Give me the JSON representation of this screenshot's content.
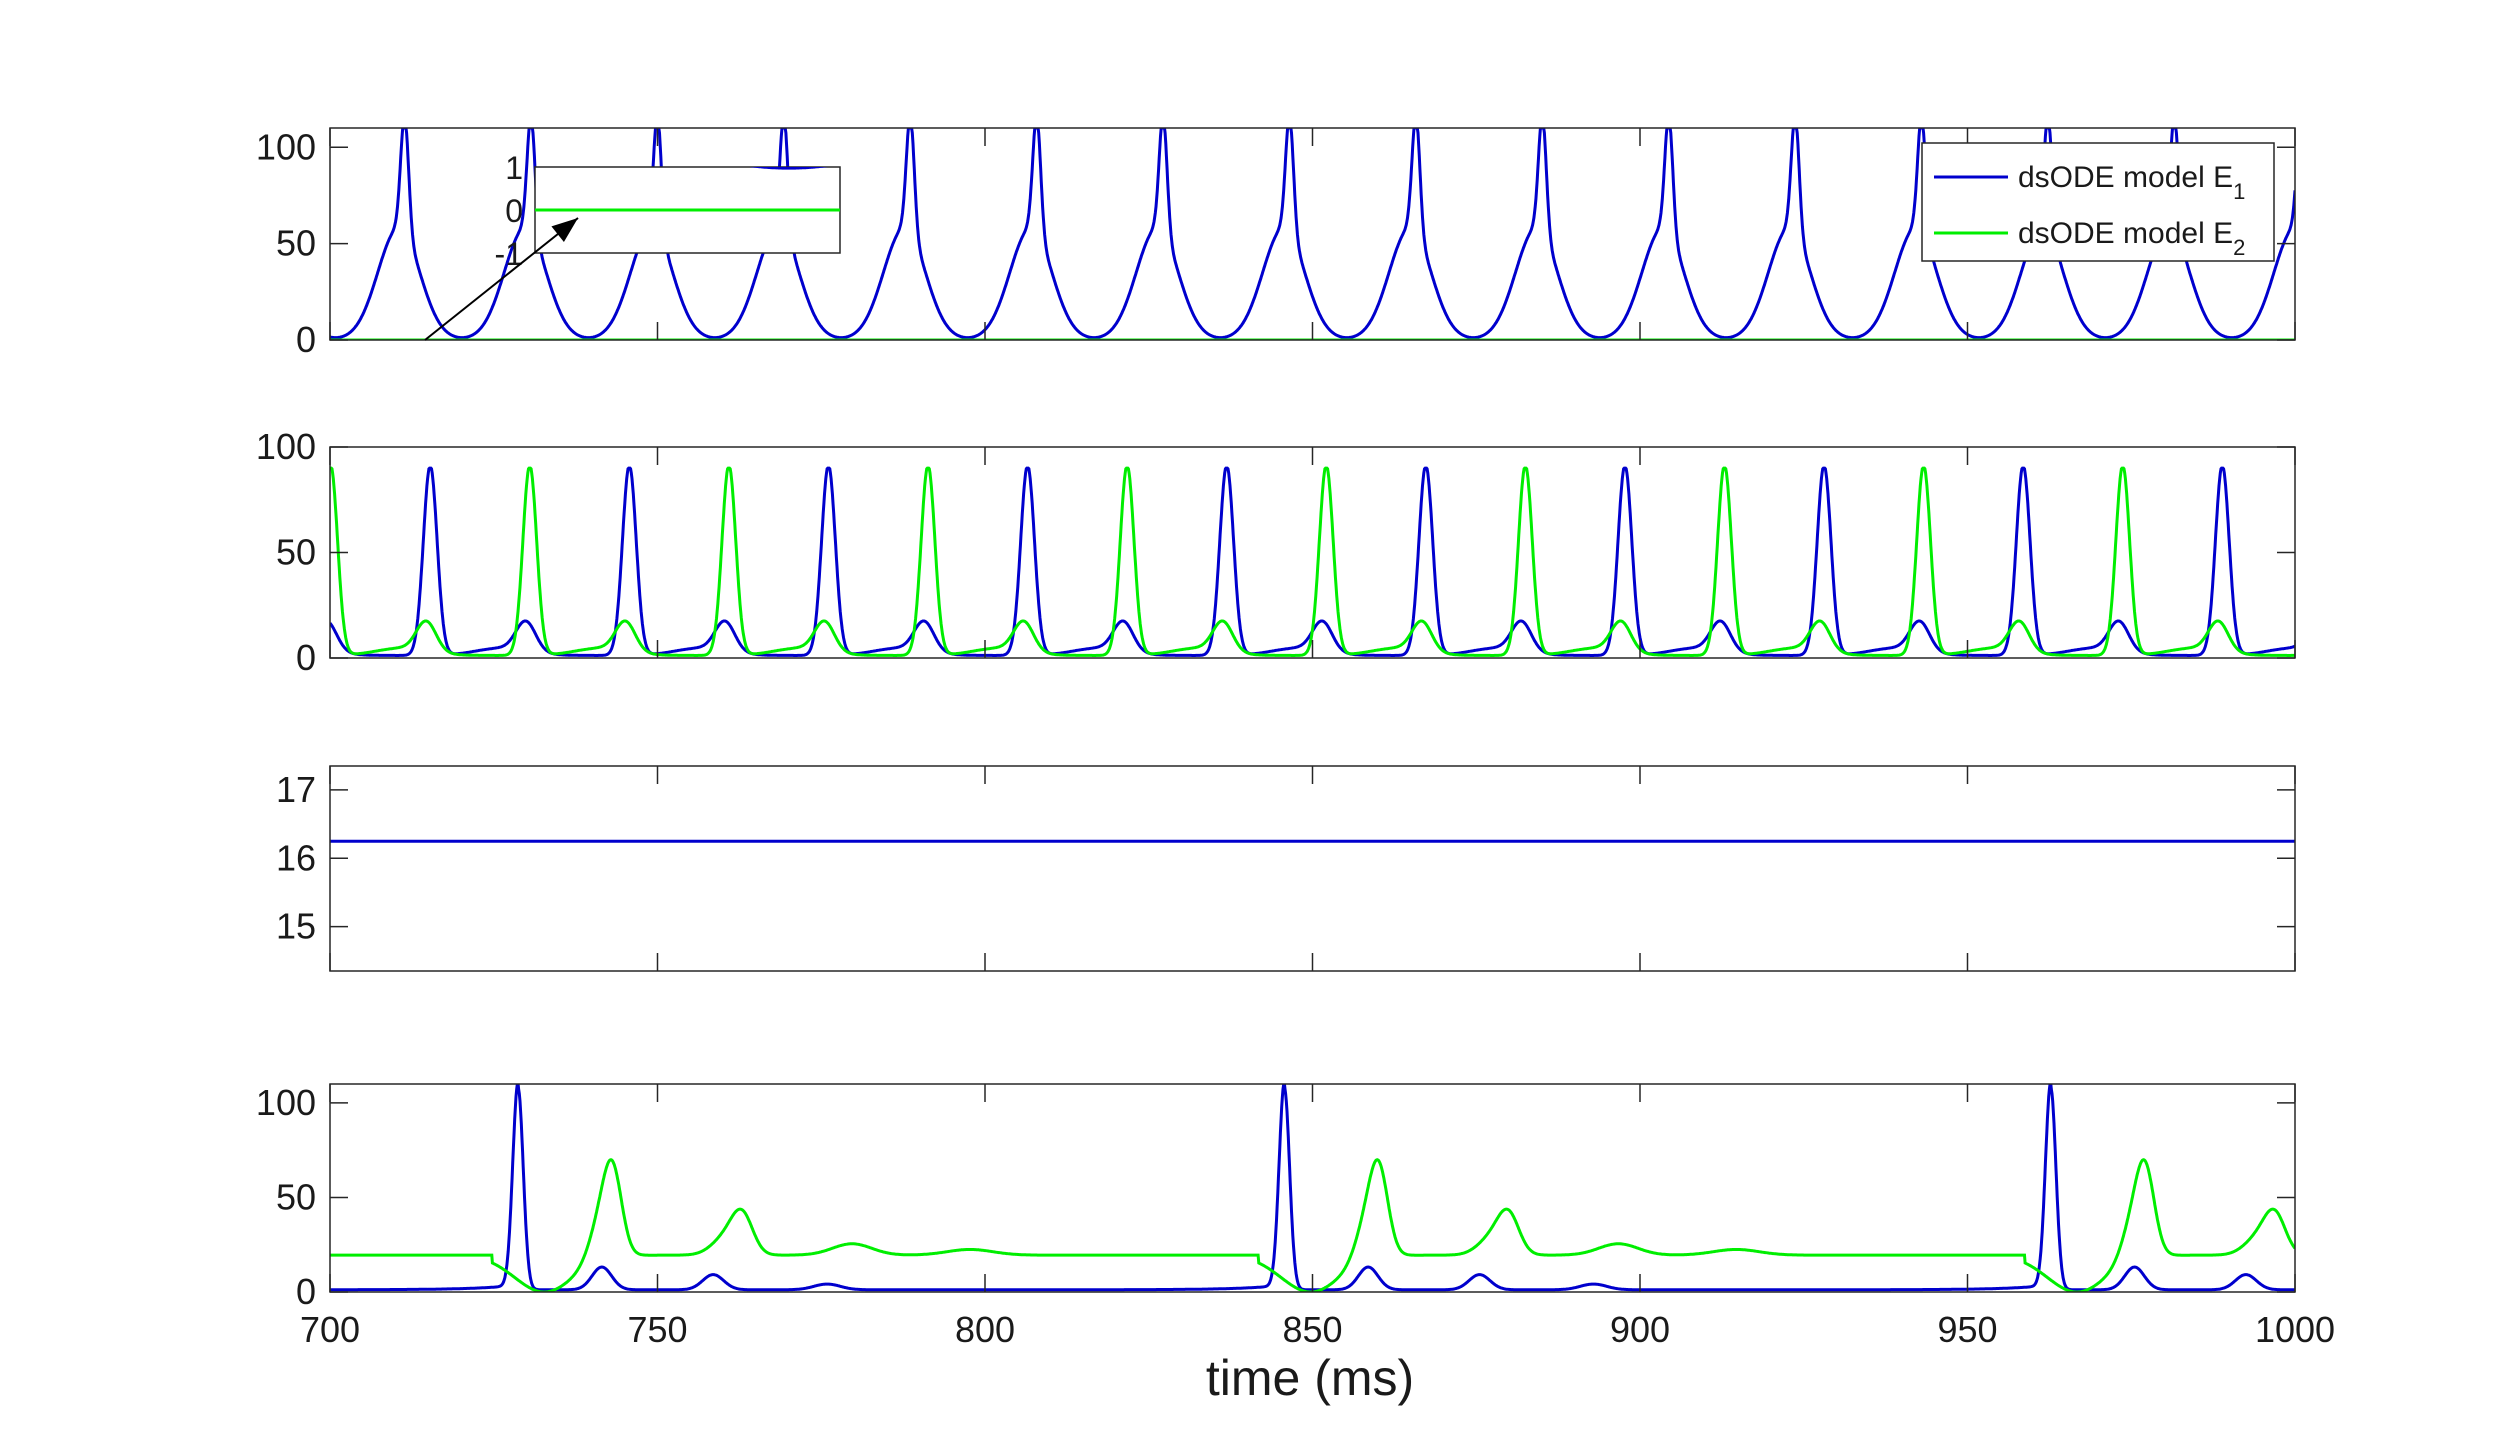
{
  "chart_data": [
    {
      "id": "panel-1",
      "type": "line",
      "xlim": [
        700,
        1000
      ],
      "ylim": [
        0,
        110
      ],
      "yticks": [
        0,
        50,
        100
      ],
      "grid": false,
      "legend": {
        "placement": "top-right",
        "entries": [
          {
            "base": "dsODE model E",
            "sub": "1",
            "color": "#0000cd"
          },
          {
            "base": "dsODE model E",
            "sub": "2",
            "color": "#00ee00"
          }
        ]
      },
      "series": [
        {
          "key": "E1",
          "color": "#0000cd",
          "pattern": "periodic-spike",
          "period": 19.3,
          "first_peak": 711.4,
          "peak": 110,
          "shoulder": 58,
          "width": 0.6,
          "rise": 3.2
        },
        {
          "key": "E2",
          "color": "#00ee00",
          "pattern": "constant",
          "value": 0
        }
      ],
      "inset": {
        "ylim": [
          -1,
          1
        ],
        "yticks": [
          1,
          0,
          -1
        ],
        "xlim": [
          711,
          722
        ],
        "annotation": "arrow from E2 baseline to inset"
      }
    },
    {
      "id": "panel-2",
      "type": "line",
      "xlim": [
        700,
        1000
      ],
      "ylim": [
        0,
        100
      ],
      "yticks": [
        0,
        50,
        100
      ],
      "grid": false,
      "series": [
        {
          "key": "E1",
          "color": "#0000cd",
          "pattern": "antiphase-spike",
          "period": 30.4,
          "first_peak": 715.3,
          "peak": 90,
          "bump": 14,
          "bump_offset": 15.2
        },
        {
          "key": "E2",
          "color": "#00ee00",
          "pattern": "antiphase-spike",
          "period": 30.4,
          "first_peak": 700.1,
          "peak": 90,
          "bump": 14,
          "bump_offset": 15.2
        }
      ]
    },
    {
      "id": "panel-3",
      "type": "line",
      "xlim": [
        700,
        1000
      ],
      "ylim": [
        14.35,
        17.35
      ],
      "yticks": [
        15,
        16,
        17
      ],
      "grid": false,
      "series": [
        {
          "key": "E1",
          "color": "#0000cd",
          "pattern": "constant",
          "value": 16.25
        }
      ]
    },
    {
      "id": "panel-4",
      "type": "line",
      "xlim": [
        700,
        1000
      ],
      "ylim": [
        0,
        110
      ],
      "yticks": [
        0,
        50,
        100
      ],
      "xticks": [
        700,
        750,
        800,
        850,
        900,
        950,
        1000
      ],
      "xlabel": "time (ms)",
      "grid": false,
      "series": [
        {
          "key": "E1",
          "color": "#0000cd",
          "pattern": "burst",
          "period": 117,
          "peaks": [
            {
              "dt": 0,
              "height": 107,
              "width": 0.8
            },
            {
              "dt": 12.8,
              "height": 12,
              "width": 1.5
            },
            {
              "dt": 29.8,
              "height": 8,
              "width": 1.6
            },
            {
              "dt": 47.2,
              "height": 3,
              "width": 2.0
            }
          ],
          "first_peak": 728.7
        },
        {
          "key": "E2",
          "color": "#00ee00",
          "pattern": "burst-response",
          "period": 117,
          "baseline": 19.5,
          "first_peak": 728.7
        }
      ]
    }
  ]
}
